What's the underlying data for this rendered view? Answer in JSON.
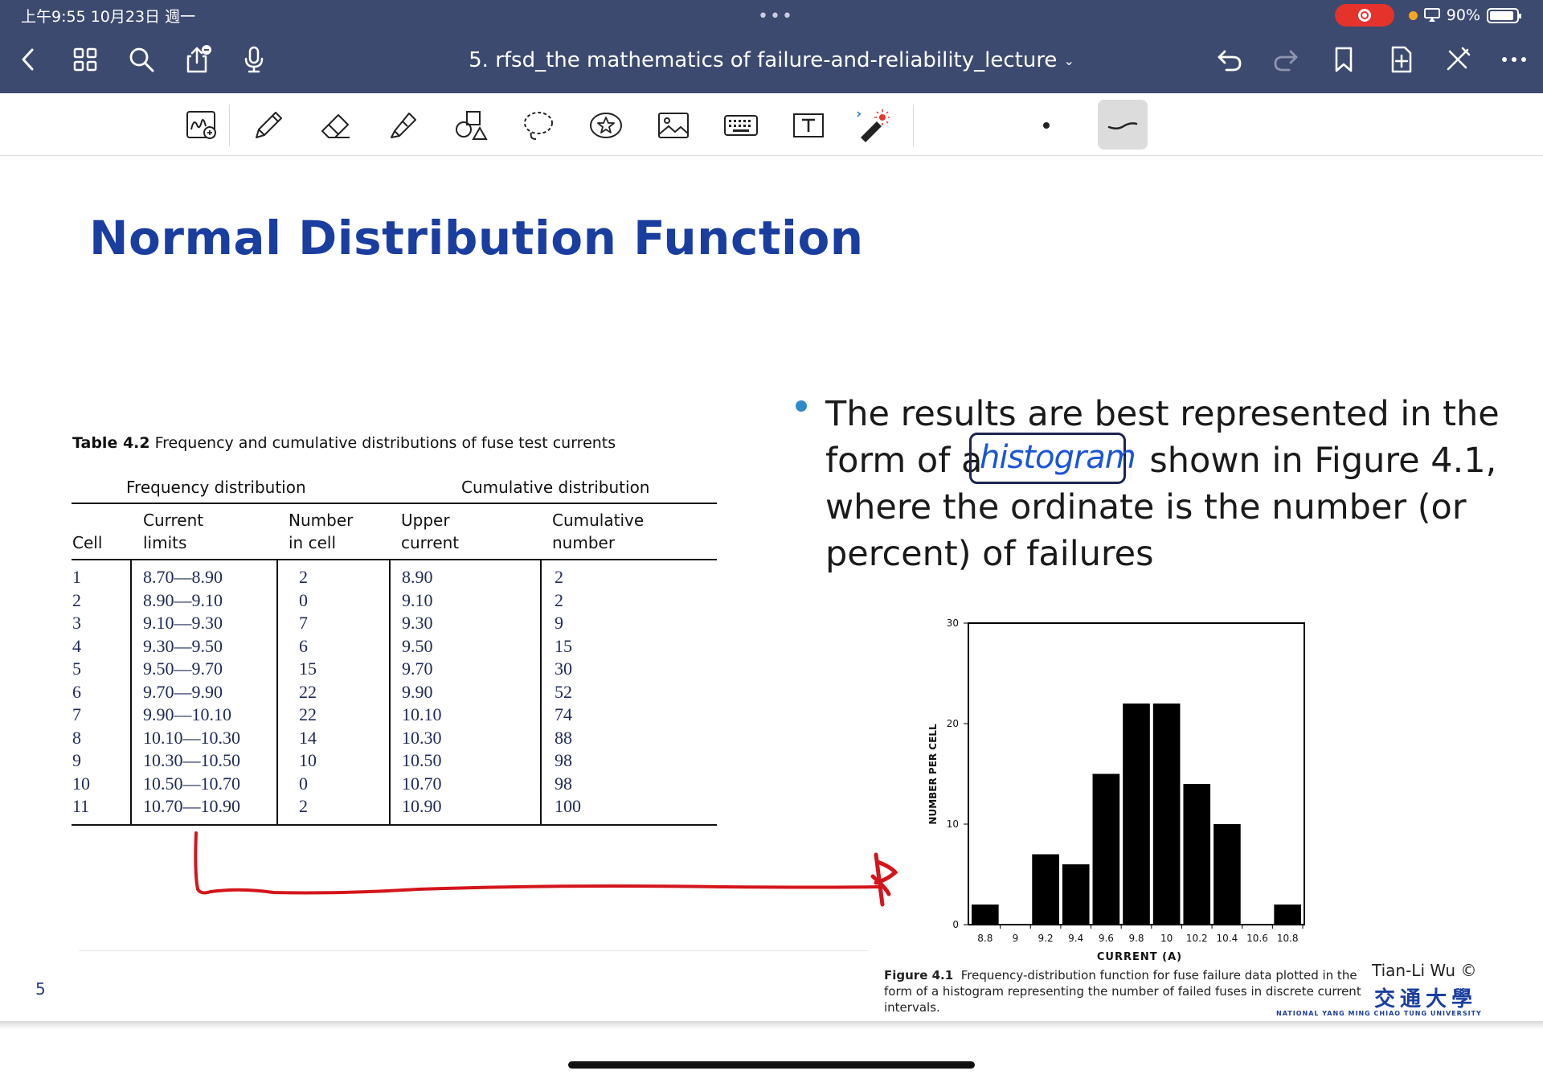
{
  "status_bar": {
    "time_date": "上午9:55  10月23日 週一",
    "battery": "90%",
    "battery_level": 0.9
  },
  "app": {
    "title": "5. rfsd_the mathematics of failure-and-reliability_lecture",
    "title_chevron": "⌄"
  },
  "slide": {
    "title": "Normal Distribution Function",
    "page_number": "5",
    "author": "Tian-Li Wu ©",
    "university_cn": "交通大學",
    "university_en": "NATIONAL YANG MING CHIAO TUNG UNIVERSITY",
    "table": {
      "caption_label": "Table 4.2",
      "caption_text": "Frequency and cumulative distributions of fuse test currents",
      "group_freq": "Frequency distribution",
      "group_cum": "Cumulative distribution",
      "headers": {
        "cell": "Cell",
        "current_1": "Current",
        "current_2": "limits",
        "number_1": "Number",
        "number_2": "in cell",
        "upper_1": "Upper",
        "upper_2": "current",
        "cumulative_1": "Cumulative",
        "cumulative_2": "number"
      },
      "rows": [
        {
          "cell": "1",
          "limits": "8.70—8.90",
          "number": "2",
          "upper": "8.90",
          "cumulative": "2"
        },
        {
          "cell": "2",
          "limits": "8.90—9.10",
          "number": "0",
          "upper": "9.10",
          "cumulative": "2"
        },
        {
          "cell": "3",
          "limits": "9.10—9.30",
          "number": "7",
          "upper": "9.30",
          "cumulative": "9"
        },
        {
          "cell": "4",
          "limits": "9.30—9.50",
          "number": "6",
          "upper": "9.50",
          "cumulative": "15"
        },
        {
          "cell": "5",
          "limits": "9.50—9.70",
          "number": "15",
          "upper": "9.70",
          "cumulative": "30"
        },
        {
          "cell": "6",
          "limits": "9.70—9.90",
          "number": "22",
          "upper": "9.90",
          "cumulative": "52"
        },
        {
          "cell": "7",
          "limits": "9.90—10.10",
          "number": "22",
          "upper": "10.10",
          "cumulative": "74"
        },
        {
          "cell": "8",
          "limits": "10.10—10.30",
          "number": "14",
          "upper": "10.30",
          "cumulative": "88"
        },
        {
          "cell": "9",
          "limits": "10.30—10.50",
          "number": "10",
          "upper": "10.50",
          "cumulative": "98"
        },
        {
          "cell": "10",
          "limits": "10.50—10.70",
          "number": "0",
          "upper": "10.70",
          "cumulative": "98"
        },
        {
          "cell": "11",
          "limits": "10.70—10.90",
          "number": "2",
          "upper": "10.90",
          "cumulative": "100"
        }
      ]
    },
    "bullet": {
      "line1": "The results are best represented in the",
      "line2_pre": "form of a",
      "line2_post": "shown in Figure 4.1,",
      "line3": "where the ordinate is the number (or",
      "line4": "percent) of failures",
      "handwritten": "histogram"
    },
    "figure": {
      "caption_label": "Figure 4.1",
      "caption_text": "Frequency-distribution function for fuse failure data plotted in the form of a histogram representing the number of failed fuses in discrete current intervals."
    }
  },
  "chart_data": {
    "type": "bar",
    "categories": [
      "8.8",
      "9",
      "9.2",
      "9.4",
      "9.6",
      "9.8",
      "10",
      "10.2",
      "10.4",
      "10.6",
      "10.8"
    ],
    "values": [
      2,
      0,
      7,
      6,
      15,
      22,
      22,
      14,
      10,
      0,
      2
    ],
    "xlabel": "CURRENT (A)",
    "ylabel": "NUMBER PER CELL",
    "ylim": [
      0,
      30
    ],
    "yticks": [
      "0",
      "10",
      "20",
      "30"
    ],
    "grid": false,
    "bar_color": "#000000"
  }
}
